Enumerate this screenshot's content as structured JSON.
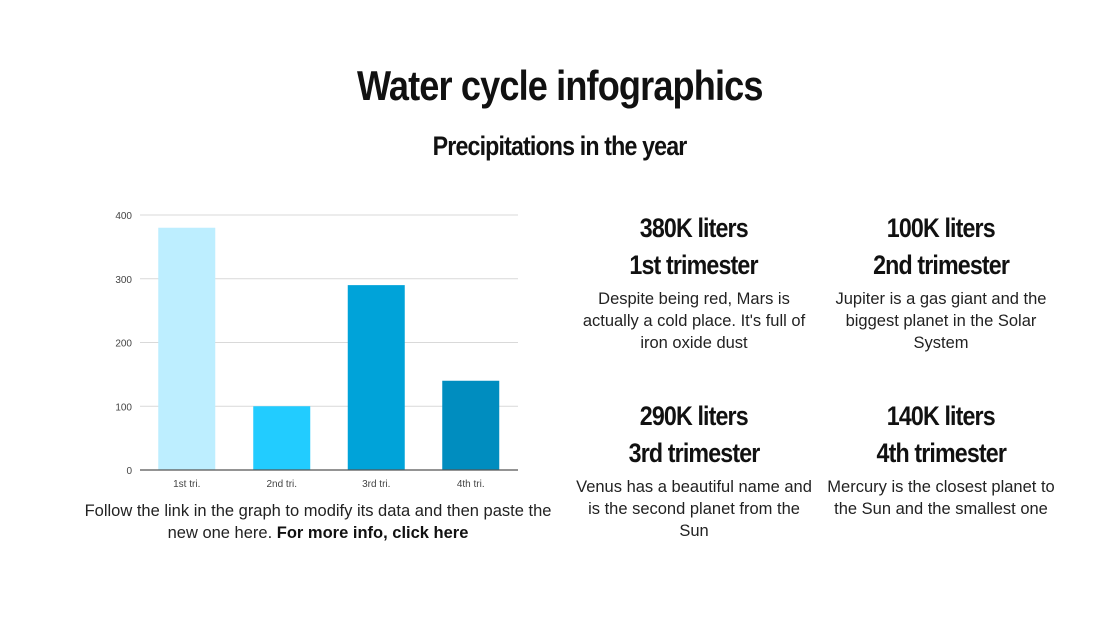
{
  "title": "Water cycle infographics",
  "subtitle": "Precipitations in the year",
  "chart_data": {
    "type": "bar",
    "categories": [
      "1st tri.",
      "2nd tri.",
      "3rd tri.",
      "4th  tri."
    ],
    "values": [
      380,
      100,
      290,
      140
    ],
    "colors": [
      "#bdeeff",
      "#22ccff",
      "#00a3d9",
      "#008dbf"
    ],
    "yticks": [
      0,
      100,
      200,
      300,
      400
    ],
    "ylim": [
      0,
      400
    ],
    "grid": true
  },
  "caption": {
    "text": "Follow the link in the graph to modify its data and then paste the new one here. ",
    "link": "For more info, click here"
  },
  "stats": [
    {
      "value": "380K liters",
      "label": "1st trimester",
      "desc": "Despite being red, Mars is actually a cold place. It's full of iron oxide dust"
    },
    {
      "value": "100K liters",
      "label": "2nd trimester",
      "desc": "Jupiter is a gas giant and the biggest planet in the Solar System"
    },
    {
      "value": "290K liters",
      "label": "3rd trimester",
      "desc": "Venus has a beautiful name and is the second planet from the Sun"
    },
    {
      "value": "140K liters",
      "label": "4th trimester",
      "desc": "Mercury is the closest planet to the Sun and the smallest one"
    }
  ]
}
